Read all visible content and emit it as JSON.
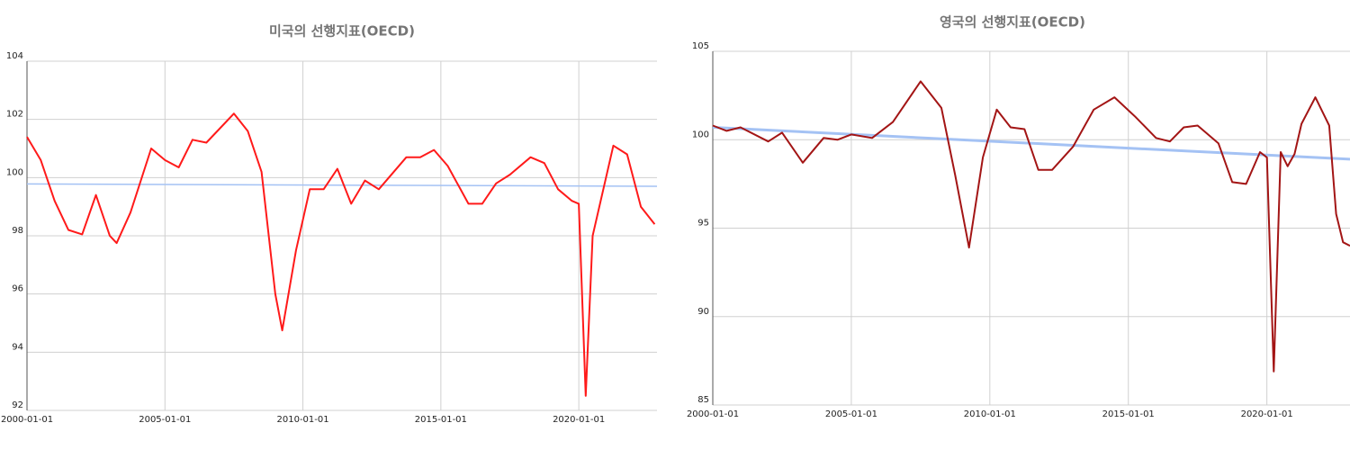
{
  "chart_data": [
    {
      "type": "line",
      "title": "미국의 선행지표(OECD)",
      "xlim": [
        "2000-01-01",
        "2022-11-01"
      ],
      "xticks": [
        "2000-01-01",
        "2005-01-01",
        "2010-01-01",
        "2015-01-01",
        "2020-01-01"
      ],
      "ylim": [
        92,
        104
      ],
      "yticks": [
        92,
        94,
        96,
        98,
        100,
        102,
        104
      ],
      "grid": true,
      "series": [
        {
          "color": "#ff1a1a",
          "x": [
            "2000-01-01",
            "2000-07-01",
            "2001-01-01",
            "2001-07-01",
            "2002-01-01",
            "2002-07-01",
            "2003-01-01",
            "2003-04-01",
            "2003-10-01",
            "2004-07-01",
            "2005-01-01",
            "2005-07-01",
            "2006-01-01",
            "2006-07-01",
            "2007-07-01",
            "2008-01-01",
            "2008-07-01",
            "2009-01-01",
            "2009-04-01",
            "2009-10-01",
            "2010-04-01",
            "2010-10-01",
            "2011-04-01",
            "2011-10-01",
            "2012-04-01",
            "2012-10-01",
            "2013-10-01",
            "2014-04-01",
            "2014-10-01",
            "2015-04-01",
            "2016-01-01",
            "2016-07-01",
            "2017-01-01",
            "2017-07-01",
            "2018-04-01",
            "2018-10-01",
            "2019-04-01",
            "2019-10-01",
            "2020-01-01",
            "2020-04-01",
            "2020-07-01",
            "2021-04-01",
            "2021-10-01",
            "2022-04-01",
            "2022-10-01"
          ],
          "values": [
            101.4,
            100.6,
            99.2,
            98.2,
            98.05,
            99.4,
            98.0,
            97.75,
            98.8,
            101.0,
            100.6,
            100.35,
            101.3,
            101.2,
            102.2,
            101.6,
            100.2,
            96.0,
            94.75,
            97.5,
            99.6,
            99.6,
            100.3,
            99.1,
            99.9,
            99.6,
            100.7,
            100.7,
            100.95,
            100.4,
            99.1,
            99.1,
            99.8,
            100.1,
            100.7,
            100.5,
            99.6,
            99.2,
            99.1,
            92.5,
            98.0,
            101.1,
            100.8,
            99.0,
            98.4
          ]
        },
        {
          "color": "#a4c2f4",
          "x": [
            "2000-01-01",
            "2022-11-01"
          ],
          "values": [
            99.78,
            99.7
          ]
        }
      ]
    },
    {
      "type": "line",
      "title": "영국의 선행지표(OECD)",
      "xlim": [
        "2000-01-01",
        "2023-01-01"
      ],
      "xticks": [
        "2000-01-01",
        "2005-01-01",
        "2010-01-01",
        "2015-01-01",
        "2020-01-01"
      ],
      "ylim": [
        85,
        105
      ],
      "yticks": [
        85,
        90,
        95,
        100,
        105
      ],
      "grid": true,
      "series": [
        {
          "color": "#a31515",
          "x": [
            "2000-01-01",
            "2000-07-01",
            "2001-01-01",
            "2002-01-01",
            "2002-07-01",
            "2003-04-01",
            "2004-01-01",
            "2004-07-01",
            "2005-01-01",
            "2005-10-01",
            "2006-07-01",
            "2007-07-01",
            "2008-04-01",
            "2008-10-01",
            "2009-04-01",
            "2009-10-01",
            "2010-04-01",
            "2010-10-01",
            "2011-04-01",
            "2011-10-01",
            "2012-04-01",
            "2013-01-01",
            "2013-10-01",
            "2014-07-01",
            "2015-04-01",
            "2016-01-01",
            "2016-07-01",
            "2017-01-01",
            "2017-07-01",
            "2018-04-01",
            "2018-10-01",
            "2019-04-01",
            "2019-10-01",
            "2020-01-01",
            "2020-04-01",
            "2020-07-01",
            "2020-10-01",
            "2021-01-01",
            "2021-04-01",
            "2021-10-01",
            "2022-04-01",
            "2022-07-01",
            "2022-10-01",
            "2023-01-01"
          ],
          "values": [
            100.8,
            100.5,
            100.7,
            99.9,
            100.4,
            98.7,
            100.1,
            100.0,
            100.3,
            100.1,
            101.0,
            103.3,
            101.8,
            98.0,
            93.9,
            99.0,
            101.7,
            100.7,
            100.6,
            98.3,
            98.3,
            99.6,
            101.7,
            102.4,
            101.3,
            100.1,
            99.9,
            100.7,
            100.8,
            99.8,
            97.6,
            97.5,
            99.3,
            99.0,
            86.9,
            99.3,
            98.5,
            99.2,
            100.9,
            102.4,
            100.8,
            95.8,
            94.2,
            94.0
          ]
        },
        {
          "color": "#a4c2f4",
          "x": [
            "2000-01-01",
            "2023-01-01"
          ],
          "values": [
            100.7,
            98.9
          ]
        }
      ]
    }
  ]
}
